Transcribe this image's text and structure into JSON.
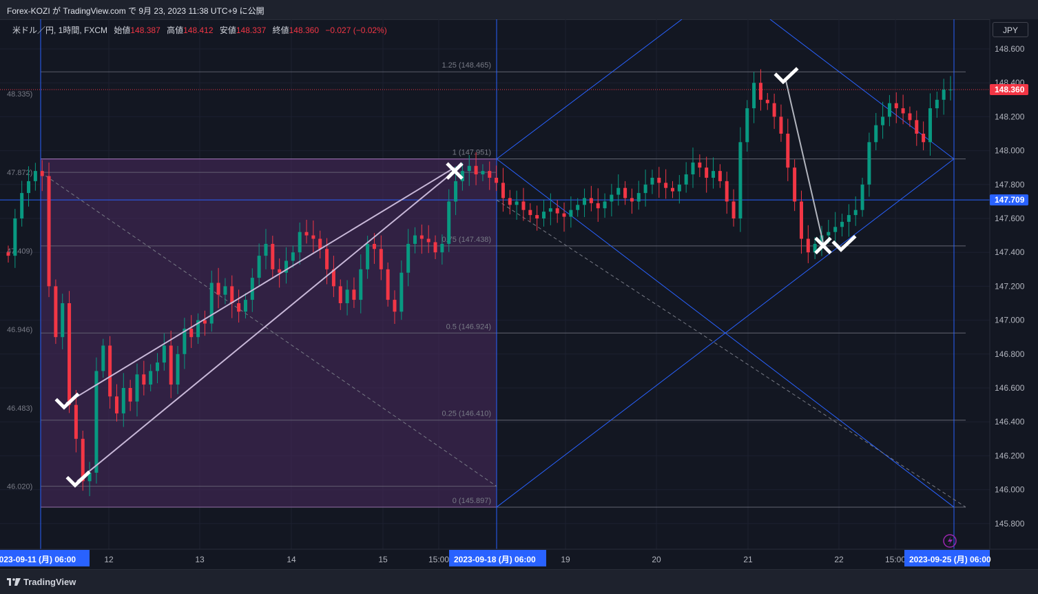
{
  "header": {
    "title": "Forex-KOZI が TradingView.com で 9月 23, 2023 11:38 UTC+9 に公開"
  },
  "legend": {
    "symbol": "米ドル／円, 1時間, FXCM",
    "open_label": "始値",
    "open": "148.387",
    "high_label": "高値",
    "high": "148.412",
    "low_label": "安値",
    "low": "148.337",
    "close_label": "終値",
    "close": "148.360",
    "change": "−0.027 (−0.02%)"
  },
  "currency_button": "JPY",
  "footer": {
    "brand": "TradingView"
  },
  "colors": {
    "background": "#131722",
    "up": "#089981",
    "down": "#f23645",
    "blue_line": "#2962ff",
    "fib_box": "#4a2a5e",
    "accent_label": "#2962ff"
  },
  "chart_data": {
    "type": "candlestick",
    "ylim": [
      145.67,
      148.72
    ],
    "y_ticks": [
      "148.600",
      "148.400",
      "148.200",
      "148.000",
      "147.800",
      "147.600",
      "147.400",
      "147.200",
      "147.000",
      "146.800",
      "146.600",
      "146.400",
      "146.200",
      "146.000",
      "145.800"
    ],
    "price_tags": [
      {
        "label": "148.360",
        "value": 148.36,
        "color": "#f23645"
      },
      {
        "label": "147.709",
        "value": 147.709,
        "color": "#2962ff"
      }
    ],
    "x_labels": [
      "12",
      "13",
      "14",
      "15",
      "15:00",
      "19",
      "20",
      "21",
      "22",
      "15:00"
    ],
    "x_date_tags": [
      "2023-09-11 (月)   06:00",
      "2023-09-18 (月)   06:00",
      "2023-09-25 (月)   06:00"
    ],
    "fib_levels": [
      {
        "label": "1.25 (148.465)",
        "value": 148.465
      },
      {
        "label": "1 (147.951)",
        "value": 147.951
      },
      {
        "label": "0.75 (147.438)",
        "value": 147.438
      },
      {
        "label": "0.5 (146.924)",
        "value": 146.924
      },
      {
        "label": "0.25 (146.410)",
        "value": 146.41
      },
      {
        "label": "0 (145.897)",
        "value": 145.897
      }
    ],
    "left_scale_labels": [
      {
        "label": "48.335)",
        "value": 148.335
      },
      {
        "label": "47.872)",
        "value": 147.872
      },
      {
        "label": "47.409)",
        "value": 147.409
      },
      {
        "label": "46.946)",
        "value": 146.946
      },
      {
        "label": "46.483)",
        "value": 146.483
      },
      {
        "label": "46.020)",
        "value": 146.02
      }
    ],
    "candles_close": [
      147.38,
      147.6,
      147.75,
      147.82,
      147.88,
      147.85,
      147.2,
      146.9,
      147.1,
      146.5,
      146.3,
      146.05,
      146.1,
      146.7,
      146.85,
      146.55,
      146.45,
      146.6,
      146.52,
      146.68,
      146.62,
      146.7,
      146.75,
      146.85,
      146.62,
      146.8,
      146.95,
      146.9,
      147.0,
      146.98,
      147.22,
      147.15,
      147.2,
      147.1,
      147.05,
      147.12,
      147.25,
      147.38,
      147.45,
      147.3,
      147.28,
      147.35,
      147.4,
      147.52,
      147.5,
      147.48,
      147.42,
      147.3,
      147.2,
      147.1,
      147.18,
      147.12,
      147.3,
      147.45,
      147.42,
      147.3,
      147.12,
      147.05,
      147.28,
      147.45,
      147.5,
      147.48,
      147.46,
      147.4,
      147.45,
      147.7,
      147.82,
      147.88,
      147.91,
      147.86,
      147.88,
      147.84,
      147.81,
      147.72,
      147.68,
      147.7,
      147.65,
      147.62,
      147.6,
      147.64,
      147.66,
      147.63,
      147.61,
      147.65,
      147.68,
      147.72,
      147.69,
      147.66,
      147.7,
      147.74,
      147.78,
      147.72,
      147.7,
      147.75,
      147.8,
      147.84,
      147.81,
      147.78,
      147.76,
      147.8,
      147.86,
      147.93,
      147.9,
      147.84,
      147.88,
      147.82,
      147.7,
      147.6,
      148.05,
      148.25,
      148.4,
      148.3,
      148.28,
      148.2,
      148.1,
      147.9,
      147.7,
      147.48,
      147.4,
      147.45,
      147.5,
      147.52,
      147.55,
      147.58,
      147.62,
      147.65,
      147.8,
      148.05,
      148.15,
      148.2,
      148.28,
      148.25,
      148.22,
      148.18,
      148.1,
      148.05,
      148.25,
      148.3,
      148.36,
      148.36
    ],
    "annotations": [
      {
        "type": "check",
        "value": 146.51,
        "at": "candle 12"
      },
      {
        "type": "check",
        "value": 146.05,
        "at": "candle 14"
      },
      {
        "type": "cross",
        "value": 147.88,
        "at": "2023-09-15 15:00"
      },
      {
        "type": "check",
        "value": 148.43,
        "at": "2023-09-21"
      },
      {
        "type": "cross",
        "value": 147.44,
        "at": "2023-09-21 late"
      },
      {
        "type": "check",
        "value": 147.44,
        "at": "2023-09-22"
      }
    ]
  }
}
